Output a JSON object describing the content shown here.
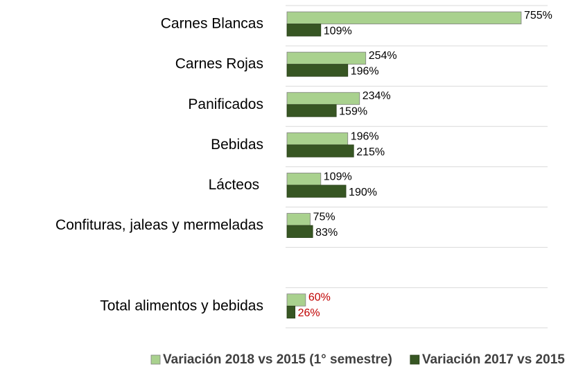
{
  "chart_data": {
    "type": "hbar",
    "categories": [
      "Carnes Blancas",
      "Carnes Rojas",
      "Panificados",
      "Bebidas",
      "Lácteos ",
      "Confituras, jaleas y mermeladas",
      null,
      "Total alimentos y bebidas"
    ],
    "series": [
      {
        "name": "Variación 2018 vs 2015 (1° semestre)",
        "color": "#a9d18e",
        "values": [
          755,
          254,
          234,
          196,
          109,
          75,
          null,
          60
        ],
        "value_labels": [
          "755%",
          "254%",
          "234%",
          "196%",
          "109%",
          "75%",
          null,
          "60%"
        ],
        "value_label_colors": [
          "#000000",
          "#000000",
          "#000000",
          "#000000",
          "#000000",
          "#000000",
          null,
          "#c00000"
        ]
      },
      {
        "name": "Variación 2017 vs 2015",
        "color": "#375623",
        "values": [
          109,
          196,
          159,
          215,
          190,
          83,
          null,
          26
        ],
        "value_labels": [
          "109%",
          "196%",
          "159%",
          "215%",
          "190%",
          "83%",
          null,
          "26%"
        ],
        "value_label_colors": [
          "#000000",
          "#000000",
          "#000000",
          "#000000",
          "#000000",
          "#000000",
          null,
          "#c00000"
        ]
      }
    ],
    "xlim": [
      0,
      840
    ],
    "grid": true,
    "legend": "bottom"
  }
}
